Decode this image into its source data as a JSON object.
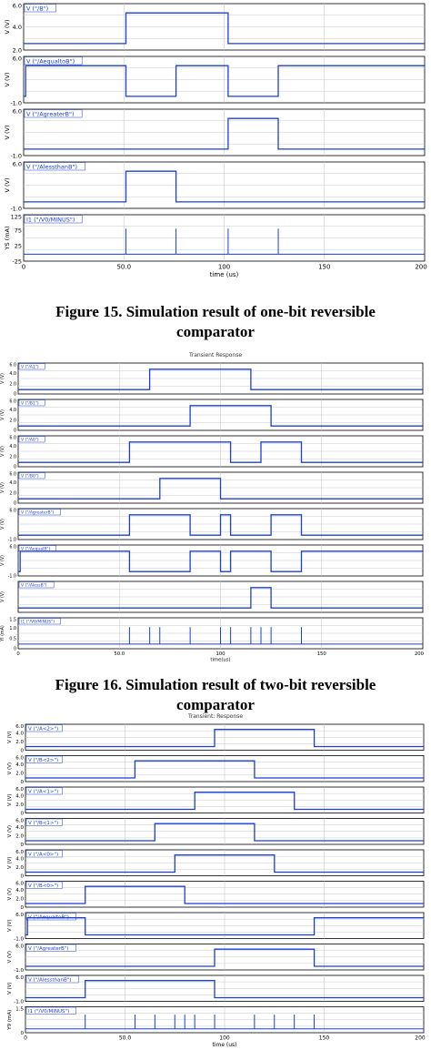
{
  "captions": {
    "fig15_line1": "Figure 15. Simulation result of one-bit reversible",
    "fig15_line2": "comparator",
    "fig16_line1": "Figure 16. Simulation result of two-bit reversible",
    "fig16_line2": "comparator"
  },
  "plot_titles": {
    "fig16": "Transient Response",
    "fig17": "Transient: Response"
  },
  "colors": {
    "trace": "#1a3fd6",
    "grid": "#c9c9c9",
    "frame": "#000000"
  },
  "chart_data": [
    {
      "type": "line",
      "id": "fig15",
      "xlabel": "time (us)",
      "xlim": [
        0,
        200
      ],
      "x_ticks": [
        "0",
        "50.0",
        "100",
        "150",
        "200"
      ],
      "panels": [
        {
          "legend": "V (\"/B\")",
          "ylabel": "V (V)",
          "y_ticks": [
            "6.0",
            "4.0",
            "2.0"
          ],
          "kind": "digital",
          "x": [
            0,
            51,
            51,
            102,
            102,
            200
          ],
          "y": [
            0,
            0,
            1,
            1,
            0,
            0
          ]
        },
        {
          "legend": "V (\"/AequaltoB\")",
          "ylabel": "V (V)",
          "y_ticks": [
            "6.0",
            "",
            "-1.0"
          ],
          "kind": "digital",
          "x": [
            0,
            1,
            1,
            51,
            51,
            76,
            76,
            102,
            102,
            127,
            127,
            200
          ],
          "y": [
            0,
            0,
            1,
            1,
            0,
            0,
            1,
            1,
            0,
            0,
            1,
            1
          ]
        },
        {
          "legend": "V (\"/AgreaterB\")",
          "ylabel": "V (V)",
          "y_ticks": [
            "6.0",
            "",
            "-1.0"
          ],
          "kind": "digital",
          "x": [
            0,
            102,
            102,
            127,
            127,
            200
          ],
          "y": [
            0,
            0,
            1,
            1,
            0,
            0
          ]
        },
        {
          "legend": "V (\"/AlessthanB\")",
          "ylabel": "V (V)",
          "y_ticks": [
            "6.0",
            "",
            "-1.0"
          ],
          "kind": "digital",
          "x": [
            0,
            51,
            51,
            76,
            76,
            200
          ],
          "y": [
            0,
            0,
            1,
            1,
            0,
            0
          ]
        },
        {
          "legend": "I1 (\"/V0/MINUS\")",
          "ylabel": "YS (mA)",
          "y_ticks": [
            "125",
            "75",
            "25",
            "-25"
          ],
          "kind": "spikes",
          "spikes": [
            51,
            76,
            102,
            127
          ]
        }
      ]
    },
    {
      "type": "line",
      "id": "fig16",
      "xlabel": "time(us)",
      "xlim": [
        0,
        200
      ],
      "x_ticks": [
        "0",
        "50.0",
        "100",
        "150",
        "200"
      ],
      "panels": [
        {
          "legend": "V (\"/A1\")",
          "ylabel": "V (V)",
          "y_ticks": [
            "6.0",
            "4.0",
            "2.0",
            "0"
          ],
          "kind": "digital",
          "x": [
            0,
            65,
            65,
            115,
            115,
            200
          ],
          "y": [
            0,
            0,
            1,
            1,
            0,
            0
          ]
        },
        {
          "legend": "V (\"/B1\")",
          "ylabel": "V (V)",
          "y_ticks": [
            "6.0",
            "4.0",
            "2.0",
            "0"
          ],
          "kind": "digital",
          "x": [
            0,
            85,
            85,
            125,
            125,
            200
          ],
          "y": [
            0,
            0,
            1,
            1,
            0,
            0
          ]
        },
        {
          "legend": "V (\"/A0\")",
          "ylabel": "V (V)",
          "y_ticks": [
            "6.0",
            "4.0",
            "2.0",
            "0"
          ],
          "kind": "digital",
          "x": [
            0,
            55,
            55,
            105,
            105,
            120,
            120,
            140,
            140,
            200
          ],
          "y": [
            0,
            0,
            1,
            1,
            0,
            0,
            1,
            1,
            0,
            0
          ]
        },
        {
          "legend": "V (\"/B0\")",
          "ylabel": "V (V)",
          "y_ticks": [
            "6.0",
            "4.0",
            "2.0",
            "0"
          ],
          "kind": "digital",
          "x": [
            0,
            70,
            70,
            100,
            100,
            200
          ],
          "y": [
            0,
            0,
            1,
            1,
            0,
            0
          ]
        },
        {
          "legend": "V (\"/AgreaterB\")",
          "ylabel": "V (V)",
          "y_ticks": [
            "6.0",
            "",
            "-1.0"
          ],
          "kind": "digital",
          "x": [
            0,
            55,
            55,
            85,
            85,
            100,
            100,
            105,
            105,
            125,
            125,
            140,
            140,
            200
          ],
          "y": [
            0,
            0,
            1,
            1,
            0,
            0,
            1,
            1,
            0,
            0,
            1,
            1,
            0,
            0
          ]
        },
        {
          "legend": "V (\"/AequalB\")",
          "ylabel": "V (V)",
          "y_ticks": [
            "6.0",
            "",
            "-1.0"
          ],
          "kind": "digital",
          "x": [
            0,
            1,
            1,
            55,
            55,
            85,
            85,
            100,
            100,
            105,
            105,
            125,
            125,
            140,
            140,
            200
          ],
          "y": [
            0,
            0,
            1,
            1,
            0,
            0,
            1,
            1,
            0,
            0,
            1,
            1,
            0,
            0,
            1,
            1
          ]
        },
        {
          "legend": "V (\"/AlessB\")",
          "ylabel": "V (V)",
          "y_ticks": [],
          "kind": "digital",
          "x": [
            0,
            115,
            115,
            125,
            125,
            200
          ],
          "y": [
            0,
            0,
            1,
            1,
            0,
            0
          ]
        },
        {
          "legend": "I1 (\"/V0/MINUS\")",
          "ylabel": "YI (mA)",
          "y_ticks": [
            "1.5",
            "1.0",
            "0.5",
            "0"
          ],
          "kind": "spikes",
          "spikes": [
            55,
            65,
            70,
            85,
            100,
            105,
            115,
            120,
            125,
            140
          ]
        }
      ]
    },
    {
      "type": "line",
      "id": "fig17",
      "xlabel": "time (us)",
      "xlim": [
        0,
        200
      ],
      "x_ticks": [
        "0",
        "50.0",
        "100",
        "150",
        "200"
      ],
      "panels": [
        {
          "legend": "V (\"/A<2>\")",
          "ylabel": "V (V)",
          "y_ticks": [
            "6.0",
            "4.0",
            "2.0",
            "0"
          ],
          "kind": "digital",
          "x": [
            0,
            95,
            95,
            145,
            145,
            200
          ],
          "y": [
            0,
            0,
            1,
            1,
            0,
            0
          ]
        },
        {
          "legend": "V (\"/B<2>\")",
          "ylabel": "V (V)",
          "y_ticks": [
            "6.0",
            "4.0",
            "2.0",
            "0"
          ],
          "kind": "digital",
          "x": [
            0,
            55,
            55,
            115,
            115,
            200
          ],
          "y": [
            0,
            0,
            1,
            1,
            0,
            0
          ]
        },
        {
          "legend": "V (\"/A<1>\")",
          "ylabel": "V (V)",
          "y_ticks": [
            "6.0",
            "4.0",
            "2.0",
            "0"
          ],
          "kind": "digital",
          "x": [
            0,
            85,
            85,
            135,
            135,
            200
          ],
          "y": [
            0,
            0,
            1,
            1,
            0,
            0
          ]
        },
        {
          "legend": "V (\"/B<1>\")",
          "ylabel": "V (V)",
          "y_ticks": [
            "6.0",
            "4.0",
            "2.0",
            "0"
          ],
          "kind": "digital",
          "x": [
            0,
            65,
            65,
            115,
            115,
            200
          ],
          "y": [
            0,
            0,
            1,
            1,
            0,
            0
          ]
        },
        {
          "legend": "V (\"/A<0>\")",
          "ylabel": "V (V)",
          "y_ticks": [
            "6.0",
            "4.0",
            "2.0",
            "0"
          ],
          "kind": "digital",
          "x": [
            0,
            75,
            75,
            125,
            125,
            200
          ],
          "y": [
            0,
            0,
            1,
            1,
            0,
            0
          ]
        },
        {
          "legend": "V (\"/B<0>\")",
          "ylabel": "V (V)",
          "y_ticks": [
            "6.0",
            "4.0",
            "2.0",
            "0"
          ],
          "kind": "digital",
          "x": [
            0,
            30,
            30,
            80,
            80,
            200
          ],
          "y": [
            0,
            0,
            1,
            1,
            0,
            0
          ]
        },
        {
          "legend": "V (\"/AequaltoB\")",
          "ylabel": "V (V)",
          "y_ticks": [
            "6.0",
            "",
            "-1.0"
          ],
          "kind": "digital",
          "x": [
            0,
            1,
            1,
            30,
            30,
            145,
            145,
            200
          ],
          "y": [
            0,
            0,
            1,
            1,
            0,
            0,
            1,
            1
          ]
        },
        {
          "legend": "V (\"/AgreaterB\")",
          "ylabel": "V (V)",
          "y_ticks": [
            "6.0",
            "",
            "-1.0"
          ],
          "kind": "digital",
          "x": [
            0,
            95,
            95,
            145,
            145,
            200
          ],
          "y": [
            0,
            0,
            1,
            1,
            0,
            0
          ]
        },
        {
          "legend": "V (\"/AlessthanB\")",
          "ylabel": "V (V)",
          "y_ticks": [
            "6.0",
            "",
            "-1.0"
          ],
          "kind": "digital",
          "x": [
            0,
            30,
            30,
            95,
            95,
            200
          ],
          "y": [
            0,
            0,
            1,
            1,
            0,
            0
          ]
        },
        {
          "legend": "I1 (\"/V0/MINUS\")",
          "ylabel": "Y9 (mA)",
          "y_ticks": [
            "1.5",
            "0"
          ],
          "kind": "spikes",
          "spikes": [
            30,
            55,
            65,
            75,
            80,
            85,
            95,
            115,
            125,
            135,
            145
          ]
        }
      ]
    }
  ]
}
